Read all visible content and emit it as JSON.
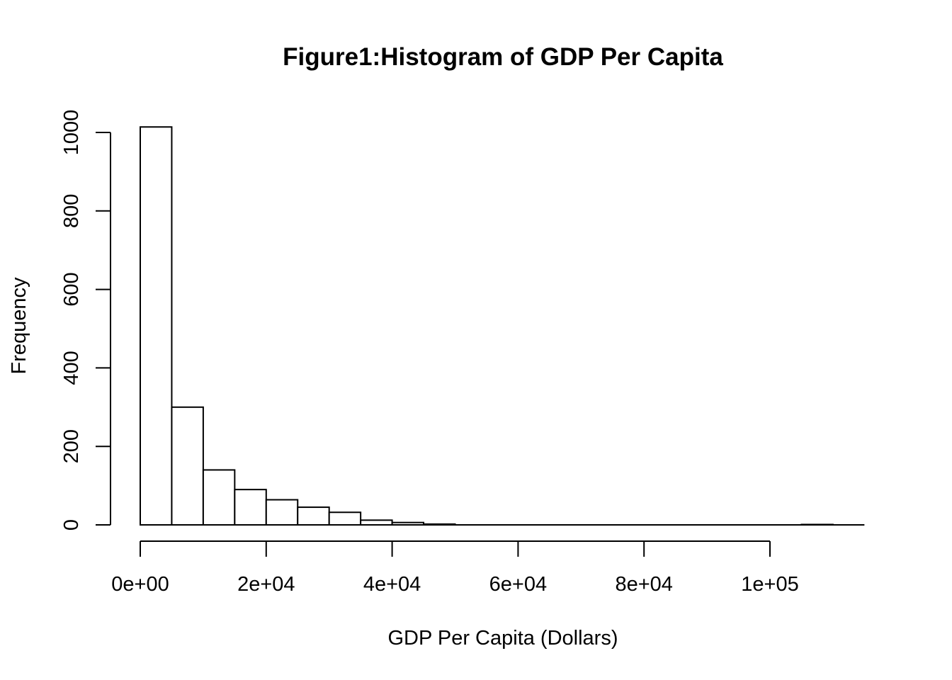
{
  "chart_data": {
    "type": "bar",
    "subtype": "histogram",
    "title": "Figure1:Histogram of GDP Per Capita",
    "xlabel": "GDP Per Capita (Dollars)",
    "ylabel": "Frequency",
    "xlim": [
      0,
      115000
    ],
    "ylim": [
      0,
      1000
    ],
    "bin_width": 5000,
    "bins": [
      {
        "start": 0,
        "end": 5000,
        "count": 1014
      },
      {
        "start": 5000,
        "end": 10000,
        "count": 300
      },
      {
        "start": 10000,
        "end": 15000,
        "count": 140
      },
      {
        "start": 15000,
        "end": 20000,
        "count": 90
      },
      {
        "start": 20000,
        "end": 25000,
        "count": 64
      },
      {
        "start": 25000,
        "end": 30000,
        "count": 45
      },
      {
        "start": 30000,
        "end": 35000,
        "count": 32
      },
      {
        "start": 35000,
        "end": 40000,
        "count": 12
      },
      {
        "start": 40000,
        "end": 45000,
        "count": 6
      },
      {
        "start": 45000,
        "end": 50000,
        "count": 2
      },
      {
        "start": 50000,
        "end": 55000,
        "count": 0
      },
      {
        "start": 55000,
        "end": 60000,
        "count": 0
      },
      {
        "start": 60000,
        "end": 65000,
        "count": 0
      },
      {
        "start": 65000,
        "end": 70000,
        "count": 0
      },
      {
        "start": 70000,
        "end": 75000,
        "count": 0
      },
      {
        "start": 75000,
        "end": 80000,
        "count": 0
      },
      {
        "start": 80000,
        "end": 85000,
        "count": 0
      },
      {
        "start": 85000,
        "end": 90000,
        "count": 0
      },
      {
        "start": 90000,
        "end": 95000,
        "count": 0
      },
      {
        "start": 95000,
        "end": 100000,
        "count": 0
      },
      {
        "start": 100000,
        "end": 105000,
        "count": 0
      },
      {
        "start": 105000,
        "end": 110000,
        "count": 1
      },
      {
        "start": 110000,
        "end": 115000,
        "count": 0
      }
    ],
    "x_ticks": [
      {
        "value": 0,
        "label": "0e+00"
      },
      {
        "value": 20000,
        "label": "2e+04"
      },
      {
        "value": 40000,
        "label": "4e+04"
      },
      {
        "value": 60000,
        "label": "6e+04"
      },
      {
        "value": 80000,
        "label": "8e+04"
      },
      {
        "value": 100000,
        "label": "1e+05"
      }
    ],
    "y_ticks": [
      {
        "value": 0,
        "label": "0"
      },
      {
        "value": 200,
        "label": "200"
      },
      {
        "value": 400,
        "label": "400"
      },
      {
        "value": 600,
        "label": "600"
      },
      {
        "value": 800,
        "label": "800"
      },
      {
        "value": 1000,
        "label": "1000"
      }
    ],
    "grid": false,
    "legend": "none",
    "colors": {
      "bar_fill": "#ffffff",
      "bar_stroke": "#000000"
    }
  }
}
